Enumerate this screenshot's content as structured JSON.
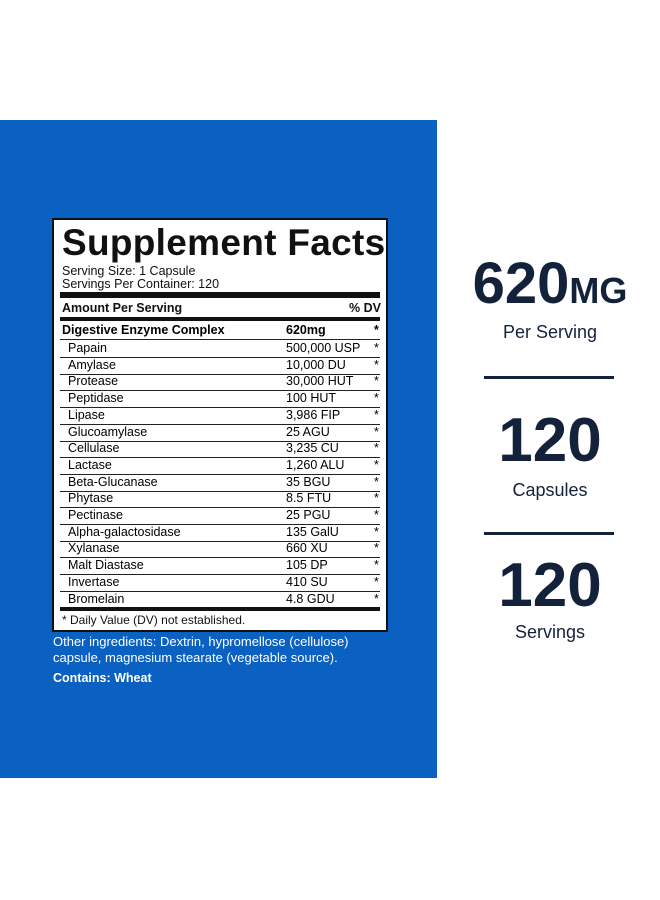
{
  "label": {
    "title": "Supplement Facts",
    "serving_size": "Serving Size: 1 Capsule",
    "servings_per_container": "Servings Per Container: 120",
    "header": {
      "amount": "Amount Per Serving",
      "dv": "% DV"
    },
    "complex": {
      "name": "Digestive Enzyme Complex",
      "amount": "620mg",
      "dv": "*"
    },
    "rows": [
      [
        "Papain",
        "500,000 USP",
        "*"
      ],
      [
        "Amylase",
        "10,000 DU",
        "*"
      ],
      [
        "Protease",
        "30,000 HUT",
        "*"
      ],
      [
        "Peptidase",
        "100 HUT",
        "*"
      ],
      [
        "Lipase",
        "3,986 FIP",
        "*"
      ],
      [
        "Glucoamylase",
        "25 AGU",
        "*"
      ],
      [
        "Cellulase",
        "3,235 CU",
        "*"
      ],
      [
        "Lactase",
        "1,260 ALU",
        "*"
      ],
      [
        "Beta-Glucanase",
        "35 BGU",
        "*"
      ],
      [
        "Phytase",
        "8.5 FTU",
        "*"
      ],
      [
        "Pectinase",
        "25 PGU",
        "*"
      ],
      [
        "Alpha-galactosidase",
        "135  GalU",
        "*"
      ],
      [
        "Xylanase",
        "660 XU",
        "*"
      ],
      [
        "Malt Diastase",
        "105 DP",
        "*"
      ],
      [
        "Invertase",
        "410 SU",
        "*"
      ],
      [
        "Bromelain",
        "4.8 GDU",
        "*"
      ]
    ],
    "footnote": "* Daily Value (DV) not established."
  },
  "other_ingredients": "Other ingredients: Dextrin, hypromellose (cellulose) capsule, magnesium stearate (vegetable source).",
  "contains": "Contains: Wheat",
  "stats": [
    {
      "value": "620",
      "unit": "MG",
      "caption": "Per Serving"
    },
    {
      "value": "120",
      "caption": "Capsules"
    },
    {
      "value": "120",
      "caption": "Servings"
    }
  ]
}
